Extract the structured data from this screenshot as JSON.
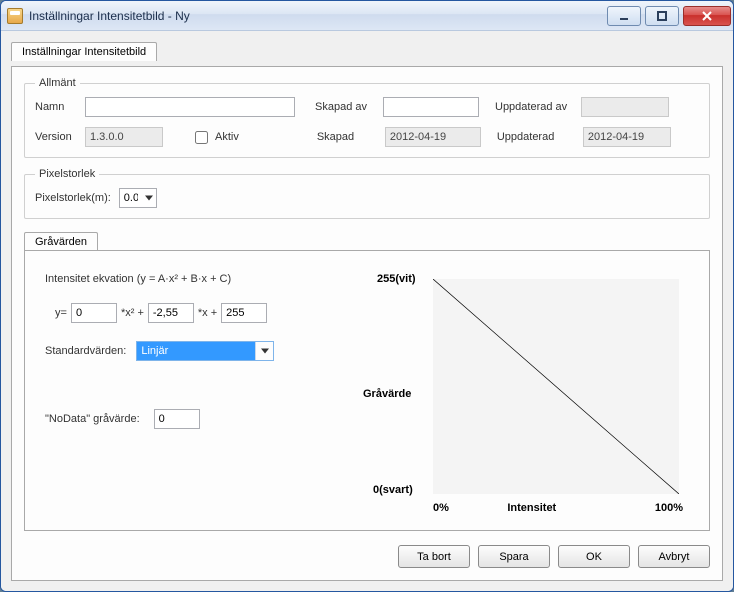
{
  "window": {
    "title": "Inställningar Intensitetbild - Ny"
  },
  "outerTab": {
    "label": "Inställningar Intensitetbild"
  },
  "general": {
    "legend": "Allmänt",
    "name_label": "Namn",
    "name_value": "",
    "created_by_label": "Skapad av",
    "created_by_value": "",
    "updated_by_label": "Uppdaterad av",
    "updated_by_value": "",
    "version_label": "Version",
    "version_value": "1.3.0.0",
    "active_label": "Aktiv",
    "active_checked": false,
    "created_label": "Skapad",
    "created_value": "2012-04-19",
    "updated_label": "Uppdaterad",
    "updated_value": "2012-04-19"
  },
  "pixel": {
    "legend": "Pixelstorlek",
    "label": "Pixelstorlek(m):",
    "value": "0.0"
  },
  "grayTab": {
    "label": "Gråvärden"
  },
  "equation": {
    "title": "Intensitet ekvation (y = A·x² + B·x + C)",
    "y_prefix": "y=",
    "A": "0",
    "times_x2": "*x² +",
    "B": "-2,55",
    "times_x": "*x +",
    "C": "255",
    "std_label": "Standardvärden:",
    "std_value": "Linjär",
    "nodata_label": "\"NoData\" gråvärde:",
    "nodata_value": "0"
  },
  "chart": {
    "type": "line",
    "y_top": "255(vit)",
    "y_mid": "Gråvärde",
    "y_bot": "0(svart)",
    "x_left": "0%",
    "x_mid": "Intensitet",
    "x_right": "100%",
    "background_color": "#f4f4f4",
    "line_color": "#000000",
    "xlim": [
      0,
      100
    ],
    "ylim": [
      0,
      255
    ],
    "points": [
      [
        0,
        255
      ],
      [
        100,
        0
      ]
    ]
  },
  "buttons": {
    "delete": "Ta bort",
    "save": "Spara",
    "ok": "OK",
    "cancel": "Avbryt"
  }
}
